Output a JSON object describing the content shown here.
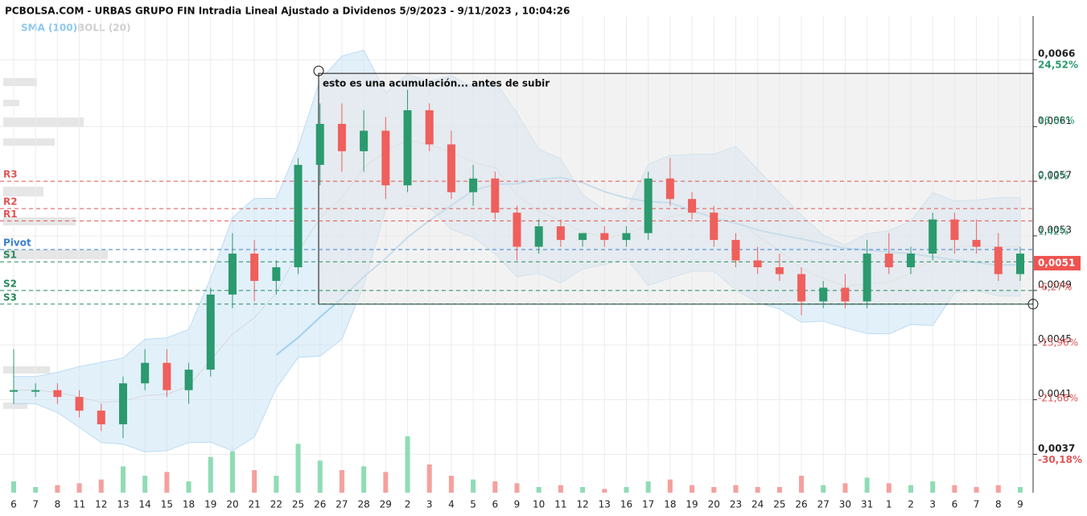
{
  "chart_data": {
    "type": "candlestick",
    "title": "PCBOLSA.COM - URBAS GRUPO FIN Intradia Lineal Ajustado a Dividenos 5/9/2023 - 9/11/2023 , 10:04:26",
    "indicators": [
      "SMA (100)",
      "BOLL (20)"
    ],
    "categories": [
      "6",
      "7",
      "8",
      "11",
      "12",
      "13",
      "14",
      "15",
      "18",
      "19",
      "20",
      "21",
      "22",
      "25",
      "26",
      "27",
      "28",
      "29",
      "2",
      "3",
      "4",
      "5",
      "6",
      "9",
      "10",
      "11",
      "12",
      "13",
      "16",
      "17",
      "18",
      "19",
      "20",
      "23",
      "24",
      "25",
      "26",
      "27",
      "30",
      "31",
      "1",
      "2",
      "3",
      "6",
      "7",
      "8",
      "9"
    ],
    "open": [
      0.0042,
      0.0042,
      0.0042,
      0.00415,
      0.00405,
      0.00395,
      0.00425,
      0.0044,
      0.0042,
      0.00435,
      0.0049,
      0.0052,
      0.005,
      0.0051,
      0.00585,
      0.00615,
      0.00595,
      0.0061,
      0.0057,
      0.00625,
      0.006,
      0.00565,
      0.00575,
      0.0055,
      0.00525,
      0.0054,
      0.0053,
      0.00535,
      0.0053,
      0.00535,
      0.00575,
      0.0056,
      0.0055,
      0.0053,
      0.00515,
      0.0051,
      0.00505,
      0.00485,
      0.00495,
      0.00485,
      0.0052,
      0.0051,
      0.0052,
      0.00545,
      0.0053,
      0.00525,
      0.00505
    ],
    "high": [
      0.0045,
      0.00425,
      0.00425,
      0.0042,
      0.0041,
      0.0043,
      0.0045,
      0.0045,
      0.0044,
      0.00495,
      0.00535,
      0.0053,
      0.00515,
      0.0059,
      0.0063,
      0.0063,
      0.00625,
      0.0062,
      0.0064,
      0.0063,
      0.0061,
      0.00585,
      0.0058,
      0.00555,
      0.00545,
      0.00545,
      0.00535,
      0.0054,
      0.0054,
      0.0058,
      0.0059,
      0.00565,
      0.00555,
      0.00535,
      0.00525,
      0.0052,
      0.0051,
      0.005,
      0.00505,
      0.0053,
      0.00535,
      0.00525,
      0.0055,
      0.0055,
      0.00545,
      0.00535,
      0.00525
    ],
    "low": [
      0.0041,
      0.00415,
      0.0041,
      0.004,
      0.0039,
      0.00385,
      0.0042,
      0.00415,
      0.0041,
      0.0043,
      0.0048,
      0.00485,
      0.0049,
      0.00505,
      0.0057,
      0.0058,
      0.0058,
      0.0056,
      0.00565,
      0.00595,
      0.0056,
      0.00555,
      0.00545,
      0.00515,
      0.0052,
      0.00525,
      0.00525,
      0.00525,
      0.00525,
      0.0053,
      0.00555,
      0.00545,
      0.00525,
      0.0051,
      0.00505,
      0.005,
      0.00475,
      0.0048,
      0.0048,
      0.0048,
      0.00505,
      0.00505,
      0.00515,
      0.0052,
      0.0052,
      0.005,
      0.005
    ],
    "close": [
      0.0042,
      0.0042,
      0.00415,
      0.00405,
      0.00395,
      0.00425,
      0.0044,
      0.0042,
      0.00435,
      0.0049,
      0.0052,
      0.005,
      0.0051,
      0.00585,
      0.00615,
      0.00595,
      0.0061,
      0.0057,
      0.00625,
      0.006,
      0.00565,
      0.00575,
      0.0055,
      0.00525,
      0.0054,
      0.0053,
      0.00535,
      0.0053,
      0.00535,
      0.00575,
      0.0056,
      0.0055,
      0.0053,
      0.00515,
      0.0051,
      0.00505,
      0.00485,
      0.00495,
      0.00485,
      0.0052,
      0.0051,
      0.0052,
      0.00545,
      0.0053,
      0.00525,
      0.00505,
      0.0052
    ],
    "volume": [
      60000,
      30000,
      40000,
      50000,
      70000,
      140000,
      90000,
      110000,
      60000,
      190000,
      220000,
      120000,
      90000,
      260000,
      170000,
      120000,
      140000,
      110000,
      300000,
      150000,
      90000,
      70000,
      60000,
      50000,
      30000,
      40000,
      30000,
      20000,
      30000,
      60000,
      70000,
      40000,
      30000,
      40000,
      30000,
      30000,
      90000,
      40000,
      50000,
      80000,
      50000,
      40000,
      60000,
      40000,
      30000,
      40000,
      30000
    ],
    "up_color": "#2b9a6e",
    "down_color": "#ef5f5c",
    "ylim": [
      0.00352,
      0.00691
    ],
    "yticks": [
      {
        "value": 0.00373,
        "label": "0,0037"
      },
      {
        "value": 0.00413,
        "label": "0,0041"
      },
      {
        "value": 0.00453,
        "label": "0,0045"
      },
      {
        "value": 0.00493,
        "label": "0,0049"
      },
      {
        "value": 0.00533,
        "label": "0,0053"
      },
      {
        "value": 0.00573,
        "label": "0,0057"
      },
      {
        "value": 0.00613,
        "label": "0,0061"
      },
      {
        "value": 0.00662,
        "label": "0,0066"
      }
    ],
    "y2lim": [
      -34.15,
      30.01
    ],
    "y2ticks": [
      {
        "value": -30.18,
        "label": "-30,18%"
      },
      {
        "value": -21.66,
        "label": "-21,66%"
      },
      {
        "value": -13.96,
        "label": "-13,96%"
      },
      {
        "value": -6.27,
        "label": "-6,27%"
      },
      {
        "value": 1.42,
        "label": "1,42%"
      },
      {
        "value": 9.12,
        "label": "9,12%"
      },
      {
        "value": 16.82,
        "label": "16,82%"
      },
      {
        "value": 24.52,
        "label": "24,52%"
      }
    ],
    "levels": [
      {
        "name": "R3",
        "value": 0.00573,
        "color": "#e05555"
      },
      {
        "name": "R2",
        "value": 0.00553,
        "color": "#e05555"
      },
      {
        "name": "R1",
        "value": 0.00544,
        "color": "#e05555"
      },
      {
        "name": "Pivot",
        "value": 0.00523,
        "color": "#3a7fd0"
      },
      {
        "name": "S1",
        "value": 0.00514,
        "color": "#2b8a5e"
      },
      {
        "name": "S2",
        "value": 0.00493,
        "color": "#2b8a5e"
      },
      {
        "name": "S3",
        "value": 0.00483,
        "color": "#2b8a5e"
      }
    ],
    "last_price": {
      "value": 0.00513,
      "label": "0,0051"
    },
    "annotation": {
      "text": "esto es una acumulación... antes de subir",
      "ylim": [
        0.00483,
        0.00652
      ]
    },
    "grid": true
  }
}
